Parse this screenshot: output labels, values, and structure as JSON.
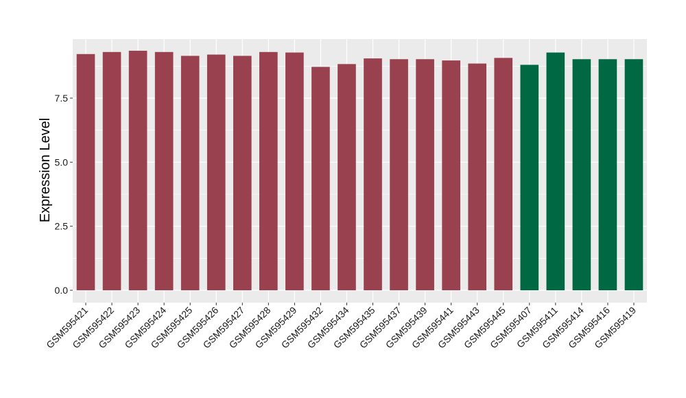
{
  "chart_data": {
    "type": "bar",
    "title": "",
    "xlabel": "",
    "ylabel": "Expression Level",
    "ylim": [
      -0.45,
      9.8
    ],
    "yticks": [
      0.0,
      2.5,
      5.0,
      7.5
    ],
    "ytick_labels": [
      "0.0",
      "2.5",
      "5.0",
      "7.5"
    ],
    "grid": true,
    "legend": "none",
    "colors": {
      "group1": "#9a4150",
      "group2": "#006843",
      "panel": "#ebebeb",
      "gridline": "#ffffff"
    },
    "categories": [
      "GSM595421",
      "GSM595422",
      "GSM595423",
      "GSM595424",
      "GSM595425",
      "GSM595426",
      "GSM595427",
      "GSM595428",
      "GSM595429",
      "GSM595432",
      "GSM595434",
      "GSM595435",
      "GSM595437",
      "GSM595439",
      "GSM595441",
      "GSM595443",
      "GSM595445",
      "GSM595407",
      "GSM595411",
      "GSM595414",
      "GSM595416",
      "GSM595419"
    ],
    "values": [
      9.22,
      9.3,
      9.35,
      9.3,
      9.15,
      9.2,
      9.15,
      9.3,
      9.28,
      8.72,
      8.83,
      9.05,
      9.02,
      9.02,
      8.97,
      8.85,
      9.07,
      8.8,
      9.28,
      9.02,
      9.02,
      9.02
    ],
    "bar_groups": [
      "group1",
      "group1",
      "group1",
      "group1",
      "group1",
      "group1",
      "group1",
      "group1",
      "group1",
      "group1",
      "group1",
      "group1",
      "group1",
      "group1",
      "group1",
      "group1",
      "group1",
      "group2",
      "group2",
      "group2",
      "group2",
      "group2"
    ]
  }
}
